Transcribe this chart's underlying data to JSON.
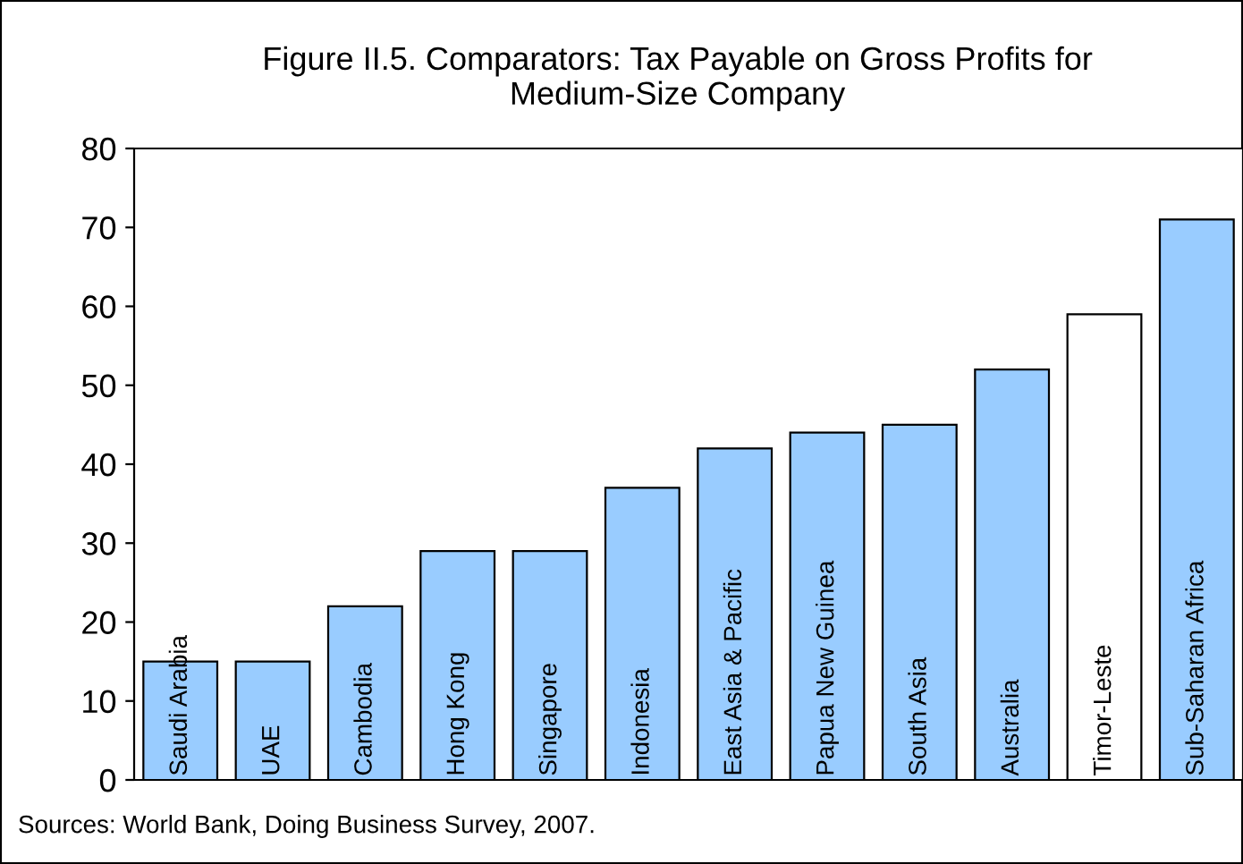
{
  "chart_data": {
    "type": "bar",
    "title": "Figure II.5. Comparators: Tax Payable on Gross Profits for\nMedium-Size Company",
    "categories": [
      "Saudi Arabia",
      "UAE",
      "Cambodia",
      "Hong Kong",
      "Singapore",
      "Indonesia",
      "East Asia & Pacific",
      "Papua New Guinea",
      "South Asia",
      "Australia",
      "Timor-Leste",
      "Sub-Saharan Africa"
    ],
    "values": [
      15,
      15,
      22,
      29,
      29,
      37,
      42,
      44,
      45,
      52,
      59,
      71
    ],
    "colors": [
      "#99ccff",
      "#99ccff",
      "#99ccff",
      "#99ccff",
      "#99ccff",
      "#99ccff",
      "#99ccff",
      "#99ccff",
      "#99ccff",
      "#99ccff",
      "#ffffff",
      "#99ccff"
    ],
    "ylim": [
      0,
      80
    ],
    "yticks": [
      0,
      10,
      20,
      30,
      40,
      50,
      60,
      70,
      80
    ],
    "grid": false,
    "annotations": [
      "Sources: World Bank, Doing Business Survey, 2007."
    ]
  }
}
